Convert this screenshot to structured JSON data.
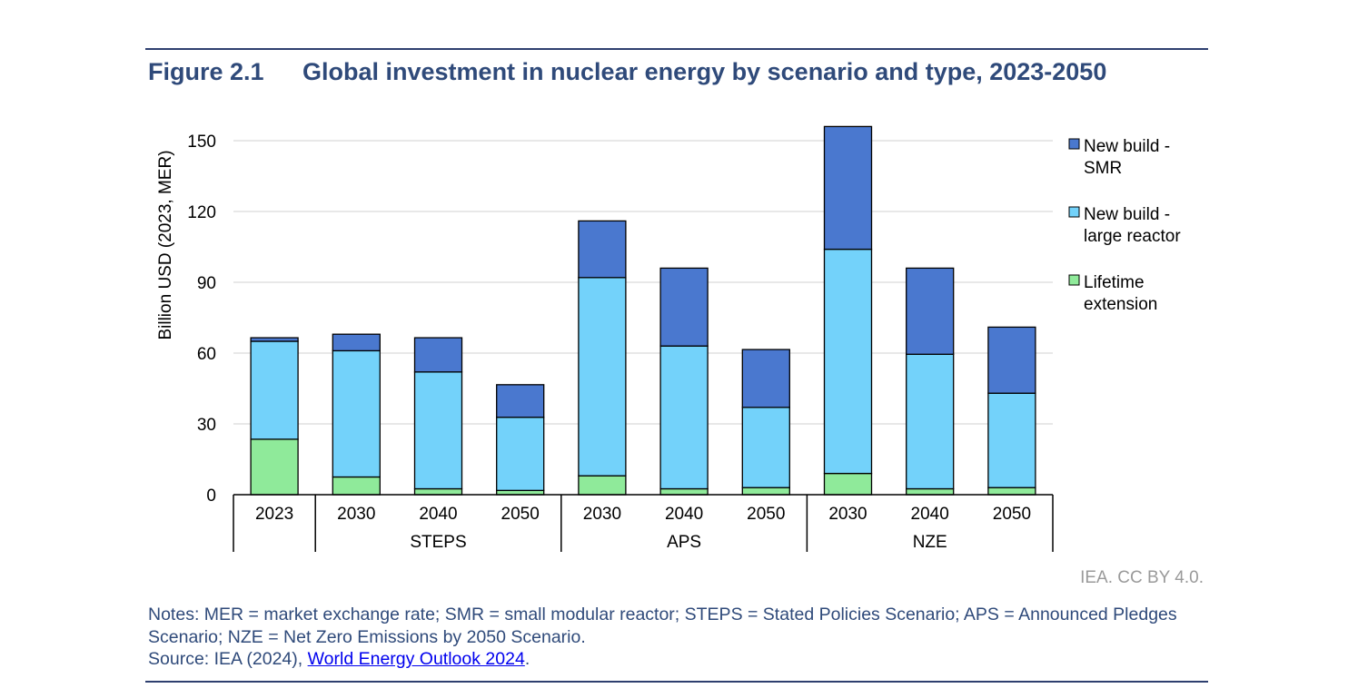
{
  "header": {
    "figure_label": "Figure 2.1",
    "title": "Global investment in nuclear energy by scenario and type, 2023-2050"
  },
  "chart_data": {
    "type": "bar",
    "stacked": true,
    "ylabel": "Billion USD (2023, MER)",
    "ylim": [
      0,
      160
    ],
    "yticks": [
      0,
      30,
      60,
      90,
      120,
      150
    ],
    "grid": true,
    "legend_position": "right",
    "categories": [
      "2023",
      "2030",
      "2040",
      "2050",
      "2030",
      "2040",
      "2050",
      "2030",
      "2040",
      "2050"
    ],
    "groups": [
      {
        "label": "",
        "start": 0,
        "end": 0
      },
      {
        "label": "STEPS",
        "start": 1,
        "end": 3
      },
      {
        "label": "APS",
        "start": 4,
        "end": 6
      },
      {
        "label": "NZE",
        "start": 7,
        "end": 9
      }
    ],
    "series": [
      {
        "name": "Lifetime extension",
        "color": "#8fea9a",
        "values": [
          23.5,
          7.5,
          2.5,
          1.8,
          8,
          2.5,
          3,
          9,
          2.5,
          3
        ]
      },
      {
        "name": "New build - large reactor",
        "color": "#73d2fa",
        "values": [
          41.5,
          53.5,
          49.5,
          31,
          84,
          60.5,
          34,
          95,
          57,
          40
        ]
      },
      {
        "name": "New build - SMR",
        "color": "#4a78cf",
        "values": [
          1.5,
          7,
          14.5,
          13.8,
          24,
          33,
          24.5,
          52,
          36.5,
          28
        ]
      }
    ],
    "legend_labels": [
      [
        "New build -",
        "SMR"
      ],
      [
        "New build -",
        "large reactor"
      ],
      [
        "Lifetime",
        "extension"
      ]
    ]
  },
  "footer": {
    "credit": "IEA. CC BY 4.0.",
    "notes": "Notes: MER = market exchange rate; SMR = small modular reactor; STEPS = Stated Policies Scenario; APS = Announced Pledges Scenario; NZE = Net Zero Emissions by 2050 Scenario.",
    "source_prefix": "Source: IEA (2024), ",
    "source_link": "World Energy Outlook 2024",
    "source_suffix": "."
  }
}
